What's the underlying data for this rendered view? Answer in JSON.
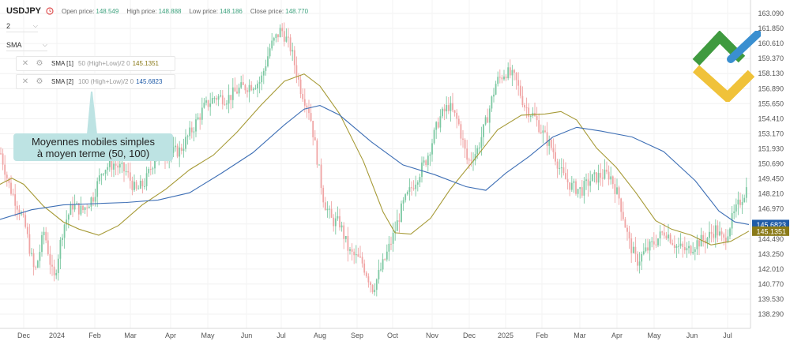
{
  "header": {
    "symbol": "USDJPY",
    "open_label": "Open price:",
    "open_value": "148.549",
    "high_label": "High price:",
    "high_value": "148.888",
    "low_label": "Low price:",
    "low_value": "148.186",
    "close_label": "Close price:",
    "close_value": "148.770"
  },
  "controls": {
    "interval": "2",
    "indicator_menu": "SMA"
  },
  "indicators": [
    {
      "name": "SMA [1]",
      "params": "50 (High+Low)/2 0",
      "value": "145.1351",
      "color": "#8a7a18"
    },
    {
      "name": "SMA [2]",
      "params": "100 (High+Low)/2 0",
      "value": "145.6823",
      "color": "#1f5ba8"
    }
  ],
  "annotation": {
    "line1": "Moyennes mobiles simples",
    "line2": "à moyen terme (50, 100)"
  },
  "colors": {
    "up": "#7cc8a2",
    "down": "#f0a4a4",
    "sma50": "#a69a36",
    "sma100": "#3e6fb5",
    "callout": "#bde3e3",
    "logo_green": "#3f9a3f",
    "logo_blue": "#3a8fd0",
    "logo_yellow": "#f0c23a"
  },
  "chart_data": {
    "type": "candlestick",
    "symbol": "USDJPY",
    "x_ticks": [
      "Dec",
      "2024",
      "Feb",
      "Mar",
      "Apr",
      "May",
      "Jun",
      "Jul",
      "Aug",
      "Sep",
      "Oct",
      "Nov",
      "Dec",
      "2025",
      "Feb",
      "Mar",
      "Apr",
      "May",
      "Jun",
      "Jul"
    ],
    "y_ticks": [
      "163.090",
      "161.850",
      "160.610",
      "159.370",
      "158.130",
      "156.890",
      "155.650",
      "154.410",
      "153.170",
      "151.930",
      "150.690",
      "149.450",
      "148.210",
      "146.970",
      "145.730",
      "144.490",
      "143.250",
      "142.010",
      "140.770",
      "139.530",
      "138.290"
    ],
    "ylim": [
      138.29,
      163.09
    ],
    "price_path": [
      {
        "x": 0,
        "y": 151.8
      },
      {
        "x": 12,
        "y": 148.8
      },
      {
        "x": 22,
        "y": 147.3
      },
      {
        "x": 32,
        "y": 145.5
      },
      {
        "x": 44,
        "y": 141.6
      },
      {
        "x": 56,
        "y": 145.2
      },
      {
        "x": 68,
        "y": 141.0
      },
      {
        "x": 80,
        "y": 145.5
      },
      {
        "x": 92,
        "y": 147.3
      },
      {
        "x": 104,
        "y": 146.8
      },
      {
        "x": 118,
        "y": 148.0
      },
      {
        "x": 130,
        "y": 150.3
      },
      {
        "x": 144,
        "y": 150.7
      },
      {
        "x": 160,
        "y": 150.0
      },
      {
        "x": 172,
        "y": 148.4
      },
      {
        "x": 184,
        "y": 149.2
      },
      {
        "x": 196,
        "y": 151.2
      },
      {
        "x": 212,
        "y": 151.5
      },
      {
        "x": 228,
        "y": 151.8
      },
      {
        "x": 244,
        "y": 153.6
      },
      {
        "x": 258,
        "y": 155.3
      },
      {
        "x": 272,
        "y": 156.2
      },
      {
        "x": 288,
        "y": 156.1
      },
      {
        "x": 304,
        "y": 156.9
      },
      {
        "x": 318,
        "y": 157.2
      },
      {
        "x": 330,
        "y": 157.5
      },
      {
        "x": 342,
        "y": 160.3
      },
      {
        "x": 356,
        "y": 161.8
      },
      {
        "x": 368,
        "y": 160.2
      },
      {
        "x": 380,
        "y": 157.0
      },
      {
        "x": 392,
        "y": 155.0
      },
      {
        "x": 402,
        "y": 150.9
      },
      {
        "x": 410,
        "y": 147.6
      },
      {
        "x": 420,
        "y": 146.0
      },
      {
        "x": 430,
        "y": 145.8
      },
      {
        "x": 442,
        "y": 143.4
      },
      {
        "x": 458,
        "y": 142.6
      },
      {
        "x": 472,
        "y": 140.4
      },
      {
        "x": 486,
        "y": 142.6
      },
      {
        "x": 498,
        "y": 144.8
      },
      {
        "x": 510,
        "y": 147.3
      },
      {
        "x": 524,
        "y": 149.1
      },
      {
        "x": 540,
        "y": 151.1
      },
      {
        "x": 556,
        "y": 154.4
      },
      {
        "x": 568,
        "y": 155.5
      },
      {
        "x": 580,
        "y": 154.1
      },
      {
        "x": 592,
        "y": 150.8
      },
      {
        "x": 604,
        "y": 151.8
      },
      {
        "x": 616,
        "y": 154.3
      },
      {
        "x": 628,
        "y": 157.4
      },
      {
        "x": 640,
        "y": 158.3
      },
      {
        "x": 652,
        "y": 157.7
      },
      {
        "x": 664,
        "y": 155.5
      },
      {
        "x": 676,
        "y": 154.6
      },
      {
        "x": 688,
        "y": 153.1
      },
      {
        "x": 700,
        "y": 151.8
      },
      {
        "x": 712,
        "y": 149.7
      },
      {
        "x": 724,
        "y": 148.8
      },
      {
        "x": 736,
        "y": 148.5
      },
      {
        "x": 748,
        "y": 149.4
      },
      {
        "x": 760,
        "y": 149.7
      },
      {
        "x": 772,
        "y": 149.8
      },
      {
        "x": 784,
        "y": 147.8
      },
      {
        "x": 796,
        "y": 144.3
      },
      {
        "x": 806,
        "y": 142.6
      },
      {
        "x": 816,
        "y": 143.4
      },
      {
        "x": 828,
        "y": 144.2
      },
      {
        "x": 842,
        "y": 145.2
      },
      {
        "x": 856,
        "y": 143.9
      },
      {
        "x": 870,
        "y": 143.5
      },
      {
        "x": 882,
        "y": 144.2
      },
      {
        "x": 894,
        "y": 144.5
      },
      {
        "x": 906,
        "y": 145.3
      },
      {
        "x": 916,
        "y": 144.3
      },
      {
        "x": 926,
        "y": 146.0
      },
      {
        "x": 936,
        "y": 147.5
      },
      {
        "x": 946,
        "y": 148.8
      }
    ],
    "series": [
      {
        "name": "SMA [1]",
        "last": 145.1351,
        "path": [
          {
            "x": 0,
            "y": 149.0
          },
          {
            "x": 15,
            "y": 149.5
          },
          {
            "x": 30,
            "y": 149.0
          },
          {
            "x": 55,
            "y": 147.2
          },
          {
            "x": 80,
            "y": 145.9
          },
          {
            "x": 100,
            "y": 145.3
          },
          {
            "x": 125,
            "y": 144.8
          },
          {
            "x": 150,
            "y": 145.6
          },
          {
            "x": 180,
            "y": 147.3
          },
          {
            "x": 210,
            "y": 148.6
          },
          {
            "x": 240,
            "y": 150.2
          },
          {
            "x": 270,
            "y": 151.4
          },
          {
            "x": 300,
            "y": 153.3
          },
          {
            "x": 330,
            "y": 155.5
          },
          {
            "x": 360,
            "y": 157.5
          },
          {
            "x": 385,
            "y": 158.1
          },
          {
            "x": 405,
            "y": 157.1
          },
          {
            "x": 430,
            "y": 154.8
          },
          {
            "x": 460,
            "y": 150.9
          },
          {
            "x": 485,
            "y": 146.7
          },
          {
            "x": 500,
            "y": 145.0
          },
          {
            "x": 520,
            "y": 144.9
          },
          {
            "x": 545,
            "y": 146.2
          },
          {
            "x": 570,
            "y": 148.6
          },
          {
            "x": 600,
            "y": 151.0
          },
          {
            "x": 630,
            "y": 153.5
          },
          {
            "x": 660,
            "y": 154.7
          },
          {
            "x": 690,
            "y": 154.8
          },
          {
            "x": 710,
            "y": 155.0
          },
          {
            "x": 730,
            "y": 154.3
          },
          {
            "x": 755,
            "y": 152.0
          },
          {
            "x": 780,
            "y": 150.4
          },
          {
            "x": 805,
            "y": 148.3
          },
          {
            "x": 830,
            "y": 146.0
          },
          {
            "x": 850,
            "y": 145.3
          },
          {
            "x": 875,
            "y": 144.8
          },
          {
            "x": 900,
            "y": 144.0
          },
          {
            "x": 925,
            "y": 144.3
          },
          {
            "x": 948,
            "y": 145.1351
          }
        ]
      },
      {
        "name": "SMA [2]",
        "last": 145.6823,
        "path": [
          {
            "x": 0,
            "y": 146.1
          },
          {
            "x": 40,
            "y": 146.9
          },
          {
            "x": 80,
            "y": 147.3
          },
          {
            "x": 120,
            "y": 147.4
          },
          {
            "x": 160,
            "y": 147.5
          },
          {
            "x": 200,
            "y": 147.7
          },
          {
            "x": 240,
            "y": 148.3
          },
          {
            "x": 280,
            "y": 149.9
          },
          {
            "x": 320,
            "y": 151.6
          },
          {
            "x": 360,
            "y": 153.9
          },
          {
            "x": 385,
            "y": 155.2
          },
          {
            "x": 405,
            "y": 155.5
          },
          {
            "x": 430,
            "y": 154.7
          },
          {
            "x": 470,
            "y": 152.5
          },
          {
            "x": 510,
            "y": 150.6
          },
          {
            "x": 550,
            "y": 149.8
          },
          {
            "x": 590,
            "y": 148.8
          },
          {
            "x": 615,
            "y": 148.5
          },
          {
            "x": 640,
            "y": 149.9
          },
          {
            "x": 670,
            "y": 151.3
          },
          {
            "x": 700,
            "y": 152.9
          },
          {
            "x": 730,
            "y": 153.7
          },
          {
            "x": 760,
            "y": 153.4
          },
          {
            "x": 800,
            "y": 152.9
          },
          {
            "x": 840,
            "y": 151.7
          },
          {
            "x": 880,
            "y": 149.3
          },
          {
            "x": 910,
            "y": 146.8
          },
          {
            "x": 930,
            "y": 145.9
          },
          {
            "x": 948,
            "y": 145.6823
          }
        ]
      }
    ]
  }
}
